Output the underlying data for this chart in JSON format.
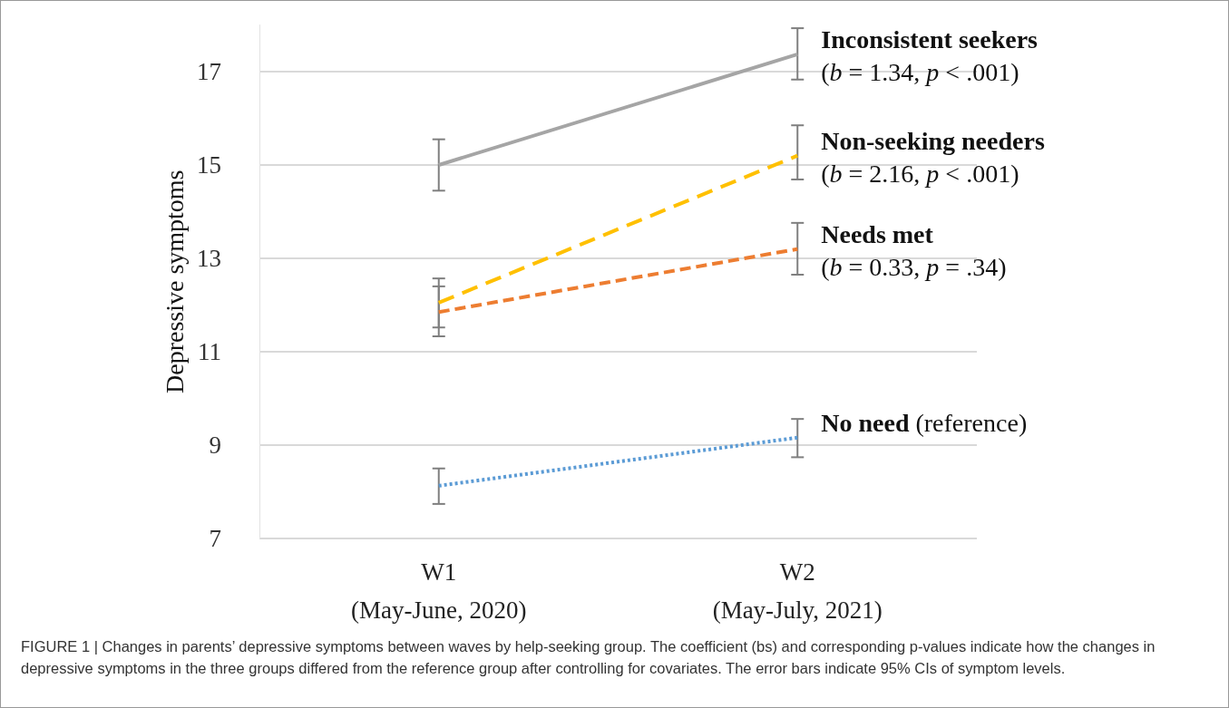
{
  "chart_data": {
    "type": "line",
    "ylabel": "Depressive symptoms",
    "categories": [
      "W1\n(May-June, 2020)",
      "W2\n(May-July, 2021)"
    ],
    "ylim": [
      7,
      18
    ],
    "yticks": [
      7,
      9,
      11,
      13,
      15,
      17
    ],
    "grid": "y",
    "legend": false,
    "marker": "none",
    "series": [
      {
        "name": "Inconsistent seekers",
        "color": "#a5a5a5",
        "line_style": "solid",
        "values": [
          15.0,
          17.37
        ],
        "errors": [
          [
            14.45,
            15.55
          ],
          [
            16.83,
            17.93
          ]
        ]
      },
      {
        "name": "Non-seeking needers",
        "color": "#ffc000",
        "line_style": "dashed",
        "values": [
          12.05,
          15.2
        ],
        "errors": [
          [
            11.52,
            12.57
          ],
          [
            14.69,
            15.85
          ]
        ]
      },
      {
        "name": "Needs met",
        "color": "#ed7d31",
        "line_style": "dashed",
        "values": [
          11.85,
          13.2
        ],
        "errors": [
          [
            11.33,
            12.4
          ],
          [
            12.65,
            13.76
          ]
        ]
      },
      {
        "name": "No need",
        "color": "#5b9bd5",
        "line_style": "dotted",
        "values": [
          8.13,
          9.16
        ],
        "errors": [
          [
            7.74,
            8.5
          ],
          [
            8.74,
            9.56
          ]
        ]
      }
    ],
    "annotations": [
      {
        "text": "(b = 1.34, p < .001)",
        "x": "W2\n(May-July, 2021)",
        "y": 17.37
      },
      {
        "text": "(b = 2.16, p < .001)",
        "x": "W2\n(May-July, 2021)",
        "y": 15.2
      },
      {
        "text": "(b = 0.33, p = .34)",
        "x": "W2\n(May-July, 2021)",
        "y": 13.2
      },
      "(reference)",
      "FIGURE 1 | Changes in parents’ depressive symptoms between waves by help-seeking group. The coefficient (bs) and corresponding p-values indicate how the changes in depressive symptoms in the three groups differed from the reference group after controlling for covariates. The error bars indicate 95% CIs of symptom levels."
    ]
  }
}
